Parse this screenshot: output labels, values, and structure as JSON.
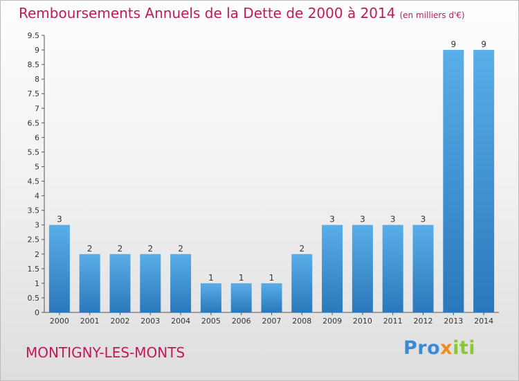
{
  "header": {
    "title": "Remboursements Annuels de la Dette de 2000 à 2014",
    "subtitle": "(en milliers d'€)"
  },
  "footer": {
    "town": "MONTIGNY-LES-MONTS",
    "logo": {
      "p1": "Pro",
      "p2": "x",
      "p3": "iti"
    }
  },
  "colors": {
    "bar": "#3b8fd6",
    "title": "#c2185b"
  },
  "chart_data": {
    "type": "bar",
    "categories": [
      "2000",
      "2001",
      "2002",
      "2003",
      "2004",
      "2005",
      "2006",
      "2007",
      "2008",
      "2009",
      "2010",
      "2011",
      "2012",
      "2013",
      "2014"
    ],
    "values": [
      3,
      2,
      2,
      2,
      2,
      1,
      1,
      1,
      2,
      3,
      3,
      3,
      3,
      9,
      9
    ],
    "data_labels": [
      "3",
      "2",
      "2",
      "2",
      "2",
      "1",
      "1",
      "1",
      "2",
      "3",
      "3",
      "3",
      "3",
      "9",
      "9"
    ],
    "y_ticks": [
      {
        "v": 0,
        "label": "0"
      },
      {
        "v": 0.5,
        "label": "0.5"
      },
      {
        "v": 1,
        "label": "1"
      },
      {
        "v": 1.5,
        "label": "1.5"
      },
      {
        "v": 2,
        "label": "2"
      },
      {
        "v": 2.5,
        "label": "2.5"
      },
      {
        "v": 3,
        "label": "3"
      },
      {
        "v": 3.5,
        "label": "3.5"
      },
      {
        "v": 4,
        "label": "4"
      },
      {
        "v": 4.5,
        "label": "4.5"
      },
      {
        "v": 5,
        "label": "5"
      },
      {
        "v": 5.5,
        "label": "5.5"
      },
      {
        "v": 6,
        "label": "6"
      },
      {
        "v": 6.5,
        "label": "6.5"
      },
      {
        "v": 7,
        "label": "7"
      },
      {
        "v": 7.5,
        "label": "7.5"
      },
      {
        "v": 8,
        "label": "8"
      },
      {
        "v": 8.5,
        "label": "8.5"
      },
      {
        "v": 9,
        "label": "9"
      },
      {
        "v": 9.5,
        "label": "9.5"
      }
    ],
    "ylim": [
      0,
      9.5
    ],
    "grid": false,
    "legend": "none"
  }
}
